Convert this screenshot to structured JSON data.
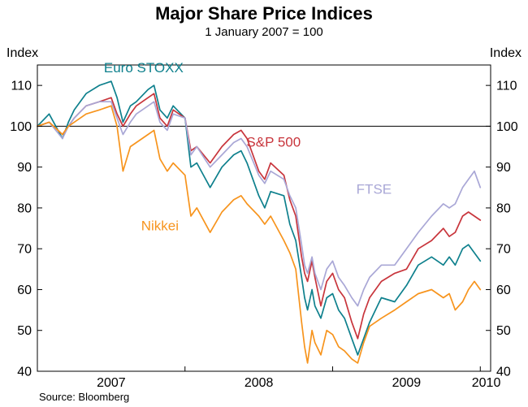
{
  "title": "Major Share Price Indices",
  "subtitle": "1 January 2007 = 100",
  "axis_unit_left": "Index",
  "axis_unit_right": "Index",
  "source": "Source: Bloomberg",
  "chart_data": {
    "type": "line",
    "title": "Major Share Price Indices",
    "subtitle": "1 January 2007 = 100",
    "xlabel": "",
    "ylabel": "Index",
    "xlim": [
      2007.0,
      2010.07
    ],
    "ylim": [
      40,
      115
    ],
    "yticks": [
      40,
      50,
      60,
      70,
      80,
      90,
      100,
      110
    ],
    "xticks": [
      2008,
      2009,
      2010
    ],
    "xtick_labels": [
      {
        "label": "2007",
        "x": 2007.5
      },
      {
        "label": "2008",
        "x": 2008.5
      },
      {
        "label": "2009",
        "x": 2009.5
      },
      {
        "label": "2010",
        "x": 2010.04
      }
    ],
    "reference_line_y": 100,
    "grid": "none",
    "legend_position": "inline-annotations",
    "x": [
      2007.0,
      2007.08,
      2007.17,
      2007.21,
      2007.25,
      2007.33,
      2007.42,
      2007.5,
      2007.54,
      2007.58,
      2007.63,
      2007.67,
      2007.75,
      2007.79,
      2007.83,
      2007.88,
      2007.92,
      2008.0,
      2008.04,
      2008.08,
      2008.17,
      2008.25,
      2008.33,
      2008.38,
      2008.42,
      2008.5,
      2008.54,
      2008.58,
      2008.67,
      2008.71,
      2008.75,
      2008.79,
      2008.81,
      2008.83,
      2008.86,
      2008.88,
      2008.92,
      2008.96,
      2009.0,
      2009.04,
      2009.08,
      2009.13,
      2009.17,
      2009.21,
      2009.25,
      2009.33,
      2009.42,
      2009.5,
      2009.58,
      2009.67,
      2009.75,
      2009.79,
      2009.83,
      2009.88,
      2009.92,
      2009.96,
      2010.0
    ],
    "series": [
      {
        "name": "Euro STOXX",
        "color": "#0e808d",
        "values": [
          100,
          103,
          97,
          101,
          104,
          108,
          110,
          111,
          107,
          101,
          105,
          106,
          109,
          110,
          104,
          102,
          105,
          102,
          90,
          91,
          85,
          90,
          93,
          94,
          91,
          83,
          80,
          84,
          83,
          76,
          72,
          63,
          58,
          55,
          60,
          56,
          53,
          58,
          59,
          55,
          53,
          48,
          44,
          48,
          52,
          58,
          57,
          61,
          66,
          68,
          66,
          68,
          66,
          70,
          71,
          69,
          67
        ]
      },
      {
        "name": "S&P 500",
        "color": "#c8353c",
        "values": [
          100,
          101,
          98,
          100,
          102,
          105,
          106,
          107,
          103,
          100,
          103,
          105,
          107,
          108,
          102,
          100,
          104,
          102,
          94,
          95,
          91,
          95,
          98,
          99,
          97,
          89,
          87,
          91,
          88,
          82,
          78,
          68,
          64,
          62,
          67,
          63,
          56,
          62,
          64,
          60,
          58,
          52,
          48,
          54,
          58,
          62,
          64,
          65,
          70,
          72,
          75,
          73,
          74,
          78,
          79,
          78,
          77
        ]
      },
      {
        "name": "FTSE",
        "color": "#a9a7d6",
        "values": [
          100,
          101,
          97,
          100,
          102,
          105,
          106,
          106,
          102,
          98,
          101,
          103,
          105,
          106,
          101,
          99,
          103,
          102,
          93,
          95,
          90,
          93,
          96,
          97,
          95,
          88,
          86,
          89,
          87,
          83,
          80,
          71,
          66,
          64,
          68,
          64,
          60,
          65,
          67,
          63,
          61,
          58,
          56,
          60,
          63,
          66,
          66,
          70,
          74,
          78,
          81,
          80,
          81,
          85,
          87,
          89,
          85
        ]
      },
      {
        "name": "Nikkei",
        "color": "#f7941d",
        "values": [
          100,
          101,
          98,
          100,
          101,
          103,
          104,
          105,
          100,
          89,
          95,
          96,
          98,
          99,
          92,
          89,
          91,
          88,
          78,
          80,
          74,
          79,
          82,
          83,
          81,
          78,
          76,
          78,
          72,
          69,
          65,
          52,
          46,
          42,
          50,
          47,
          44,
          50,
          49,
          46,
          45,
          43,
          42,
          47,
          51,
          53,
          55,
          57,
          59,
          60,
          58,
          59,
          55,
          57,
          60,
          62,
          60
        ]
      }
    ],
    "annotations": [
      {
        "text": "Euro STOXX",
        "x": 2007.72,
        "y": 113.2,
        "color": "#0e808d"
      },
      {
        "text": "S&P 500",
        "x": 2008.6,
        "y": 95.0,
        "color": "#c8353c"
      },
      {
        "text": "FTSE",
        "x": 2009.28,
        "y": 83.5,
        "color": "#a9a7d6"
      },
      {
        "text": "Nikkei",
        "x": 2007.83,
        "y": 74.5,
        "color": "#f7941d"
      }
    ]
  }
}
